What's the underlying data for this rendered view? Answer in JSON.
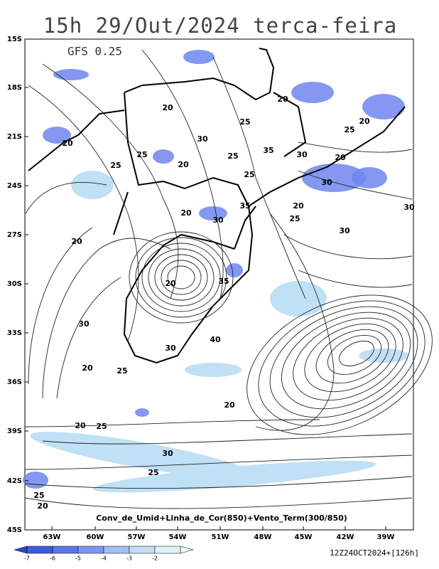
{
  "header": {
    "title": "15h 29/Out/2024 terca-feira",
    "model": "GFS 0.25"
  },
  "map": {
    "lat_labels": [
      "15S",
      "18S",
      "21S",
      "24S",
      "27S",
      "30S",
      "33S",
      "36S",
      "39S",
      "42S",
      "45S"
    ],
    "lon_labels": [
      "63W",
      "60W",
      "57W",
      "54W",
      "51W",
      "48W",
      "45W",
      "42W",
      "39W"
    ],
    "contour_labels": [
      "20",
      "20",
      "25",
      "20",
      "20",
      "30",
      "25",
      "25",
      "35",
      "30",
      "20",
      "25",
      "20",
      "25",
      "30",
      "25",
      "30",
      "20",
      "20",
      "30",
      "35",
      "35",
      "25",
      "30",
      "30",
      "20",
      "20",
      "40",
      "30",
      "25",
      "20",
      "20",
      "25",
      "30",
      "25",
      "25",
      "20",
      "20"
    ]
  },
  "footer": {
    "caption": "Conv_de_Umid+Linha_de_Cor(850)+Vento_Term(300/850)",
    "scale_labels": [
      "-7",
      "-6",
      "-5",
      "-4",
      "-3",
      "-2"
    ],
    "run": "12Z24OCT2024+[126h]"
  }
}
